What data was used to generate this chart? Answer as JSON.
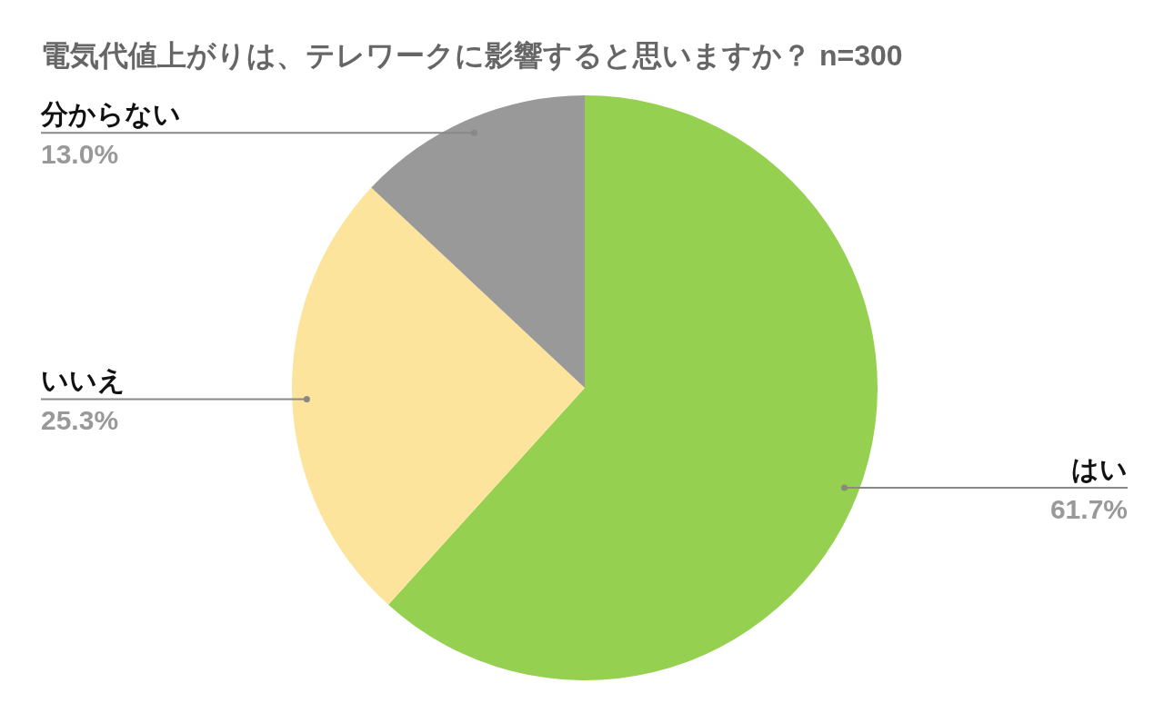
{
  "chart_data": {
    "type": "pie",
    "title": "電気代値上がりは、テレワークに影響すると思いますか？ n=300",
    "categories": [
      "はい",
      "いいえ",
      "分からない"
    ],
    "values": [
      61.7,
      25.3,
      13.0
    ],
    "value_labels": [
      "61.7%",
      "25.3%",
      "13.0%"
    ],
    "colors": [
      "#96d050",
      "#fde49c",
      "#999999"
    ]
  }
}
